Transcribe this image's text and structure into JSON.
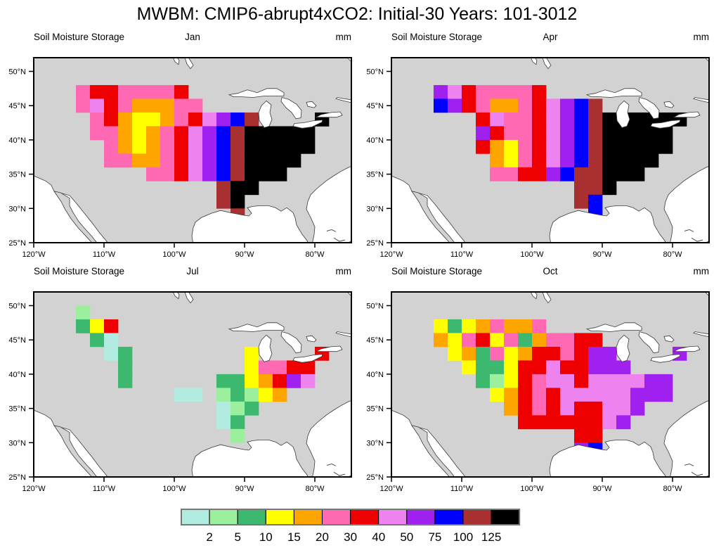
{
  "title": "MWBM: CMIP6-abrupt4xCO2: Initial-30 Years: 101-3012",
  "panel_header": {
    "left": "Soil Moisture Storage",
    "unit": "mm"
  },
  "axes": {
    "lat_ticks": [
      {
        "value": 50,
        "label": "50°N"
      },
      {
        "value": 45,
        "label": "45°N"
      },
      {
        "value": 40,
        "label": "40°N"
      },
      {
        "value": 35,
        "label": "35°N"
      },
      {
        "value": 30,
        "label": "30°N"
      },
      {
        "value": 25,
        "label": "25°N"
      }
    ],
    "lon_ticks": [
      {
        "value": 120,
        "label": "120°W"
      },
      {
        "value": 110,
        "label": "110°W"
      },
      {
        "value": 100,
        "label": "100°W"
      },
      {
        "value": 90,
        "label": "90°W"
      },
      {
        "value": 80,
        "label": "80°W"
      }
    ]
  },
  "map_colors": {
    "land": "#D2D2D2",
    "water": "#FFFFFF",
    "coast": "#3a3a3a"
  },
  "colorbar": {
    "labels": [
      "2",
      "5",
      "10",
      "15",
      "20",
      "30",
      "40",
      "50",
      "75",
      "100",
      "125"
    ],
    "color_names": [
      "pale-turquoise",
      "pale-green",
      "medium-sea-green",
      "yellow",
      "orange",
      "hot-pink",
      "red",
      "orchid",
      "purple",
      "blue",
      "brown",
      "black"
    ]
  },
  "chart_data": {
    "type": "heatmap",
    "title": "MWBM: CMIP6-abrupt4xCO2: Initial-30 Years: 101-3012",
    "variable": "Soil Moisture Storage",
    "unit": "mm",
    "levels_mm": [
      2,
      5,
      10,
      15,
      20,
      30,
      40,
      50,
      75,
      100,
      125
    ],
    "palette_order": "abcdefghijkl",
    "palette": {
      "a": "#B2EBDF",
      "b": "#9CEF9C",
      "c": "#3CB96F",
      "d": "#FFFF00",
      "e": "#FFA500",
      "f": "#FF69B4",
      "g": "#EE0000",
      "h": "#EE82EE",
      "i": "#A020F0",
      "j": "#0000FF",
      "k": "#A93030",
      "l": "#000000"
    },
    "palette_levels": {
      "a": "<2",
      "b": "2-5",
      "c": "5-10",
      "d": "10-15",
      "e": "15-20",
      "f": "20-30",
      "g": "30-40",
      "h": "40-50",
      "i": "50-75",
      "j": "75-100",
      "k": "100-125",
      "l": ">125"
    },
    "map_extent": {
      "lon_west": [
        120,
        74.8
      ],
      "lat_north": [
        25,
        52
      ]
    },
    "grid": {
      "lon_west_start": 120,
      "lat_north_start": 52,
      "cell_deg": 2,
      "cols": 23,
      "rows": 14
    },
    "panels": [
      {
        "month": "Jan",
        "cells": [
          ".......................",
          ".......................",
          "...fggffffg............",
          "...fhgfeeeff...........",
          "....fgeddefghijk....l..",
          "....ffedefghijklllll...",
          ".....fedefghijklllll...",
          ".....ffeefghijkllll....",
          "........ffghijklll.....",
          ".............kll.......",
          ".............kl........",
          "..............k........",
          ".......................",
          "......................."
        ]
      },
      {
        "month": "Apr",
        "cells": [
          ".......................",
          ".......................",
          "...ihgffffg............",
          "...jigfeefghijk........",
          "......ghffghijkllllll..",
          "......igffghijklllll...",
          "......gedfghijklllll...",
          ".......edfghijkllll....",
          ".......ffggijkklll.....",
          ".............kkl.......",
          ".............kj........",
          "..............j........",
          ".......................",
          "......................."
        ]
      },
      {
        "month": "Jul",
        "cells": [
          ".......................",
          "...b...................",
          "...cdg.................",
          "....ca.................",
          ".....ac........d....g..",
          "......c........dffgg...",
          "......c......ccdegih...",
          "..........aa.bcbde.....",
          ".............abc.......",
          ".............ac........",
          "..............b........",
          ".......................",
          ".......................",
          "......................."
        ]
      },
      {
        "month": "Oct",
        "cells": [
          ".......................",
          ".......................",
          "...dcdefeef............",
          "...edfgdfceffgg........",
          "....decfdeggfgii....i..",
          ".....dccdgghggiii......",
          "......cbdgfhhghhhhii...",
          ".......degfghhhhhiii...",
          "........egfghgghhi.....",
          ".........gggggghi......",
          ".............gg........",
          ".............ij........",
          ".......................",
          "......................."
        ]
      }
    ]
  }
}
